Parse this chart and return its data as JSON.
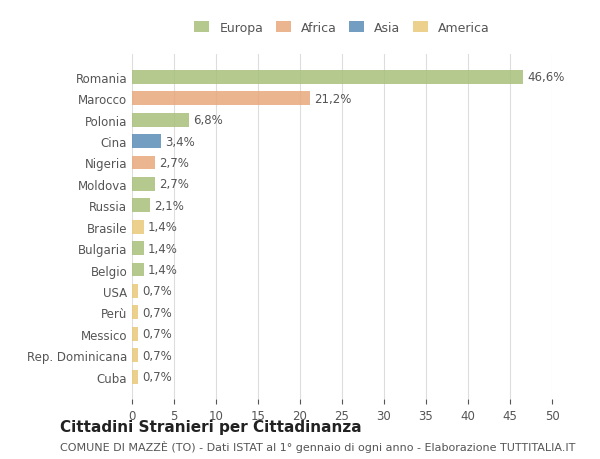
{
  "countries": [
    "Romania",
    "Marocco",
    "Polonia",
    "Cina",
    "Nigeria",
    "Moldova",
    "Russia",
    "Brasile",
    "Bulgaria",
    "Belgio",
    "USA",
    "Perù",
    "Messico",
    "Rep. Dominicana",
    "Cuba"
  ],
  "values": [
    46.6,
    21.2,
    6.8,
    3.4,
    2.7,
    2.7,
    2.1,
    1.4,
    1.4,
    1.4,
    0.7,
    0.7,
    0.7,
    0.7,
    0.7
  ],
  "labels": [
    "46,6%",
    "21,2%",
    "6,8%",
    "3,4%",
    "2,7%",
    "2,7%",
    "2,1%",
    "1,4%",
    "1,4%",
    "1,4%",
    "0,7%",
    "0,7%",
    "0,7%",
    "0,7%",
    "0,7%"
  ],
  "continents": [
    "Europa",
    "Africa",
    "Europa",
    "Asia",
    "Africa",
    "Europa",
    "Europa",
    "America",
    "Europa",
    "Europa",
    "America",
    "America",
    "America",
    "America",
    "America"
  ],
  "continent_colors": {
    "Europa": "#a8c07a",
    "Africa": "#e8a87c",
    "Asia": "#5b8db8",
    "America": "#e8c87a"
  },
  "legend_order": [
    "Europa",
    "Africa",
    "Asia",
    "America"
  ],
  "title": "Cittadini Stranieri per Cittadinanza",
  "subtitle": "COMUNE DI MAZZÈ (TO) - Dati ISTAT al 1° gennaio di ogni anno - Elaborazione TUTTITALIA.IT",
  "xlim": [
    0,
    50
  ],
  "xticks": [
    0,
    5,
    10,
    15,
    20,
    25,
    30,
    35,
    40,
    45,
    50
  ],
  "background_color": "#ffffff",
  "grid_color": "#dddddd",
  "text_color": "#555555",
  "bar_height": 0.65,
  "label_fontsize": 8.5,
  "title_fontsize": 11,
  "subtitle_fontsize": 8,
  "axis_label_fontsize": 8.5,
  "legend_fontsize": 9
}
